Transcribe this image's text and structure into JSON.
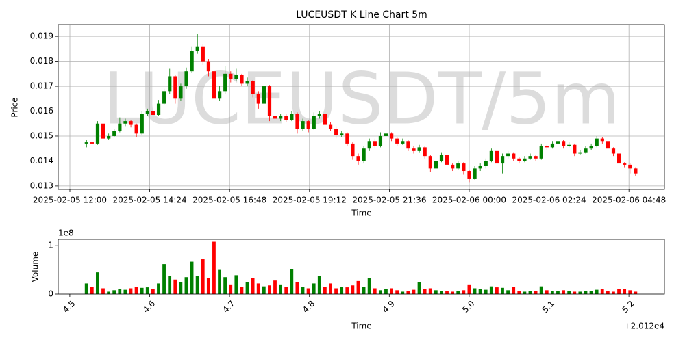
{
  "chart_data": [
    {
      "type": "candlestick",
      "title": "LUCEUSDT K Line Chart 5m",
      "watermark": "LUCEUSDT/5m",
      "xlabel": "Time",
      "ylabel": "Price",
      "grid": true,
      "up_color": "green",
      "down_color": "red",
      "x": [
        "2025-02-05 12:30",
        "2025-02-05 12:40",
        "2025-02-05 12:50",
        "2025-02-05 13:00",
        "2025-02-05 13:10",
        "2025-02-05 13:20",
        "2025-02-05 13:30",
        "2025-02-05 13:40",
        "2025-02-05 13:50",
        "2025-02-05 14:00",
        "2025-02-05 14:10",
        "2025-02-05 14:20",
        "2025-02-05 14:30",
        "2025-02-05 14:40",
        "2025-02-05 14:50",
        "2025-02-05 15:00",
        "2025-02-05 15:10",
        "2025-02-05 15:20",
        "2025-02-05 15:30",
        "2025-02-05 15:40",
        "2025-02-05 15:50",
        "2025-02-05 16:00",
        "2025-02-05 16:10",
        "2025-02-05 16:20",
        "2025-02-05 16:30",
        "2025-02-05 16:40",
        "2025-02-05 16:50",
        "2025-02-05 17:00",
        "2025-02-05 17:10",
        "2025-02-05 17:20",
        "2025-02-05 17:30",
        "2025-02-05 17:40",
        "2025-02-05 17:50",
        "2025-02-05 18:00",
        "2025-02-05 18:10",
        "2025-02-05 18:20",
        "2025-02-05 18:30",
        "2025-02-05 18:40",
        "2025-02-05 18:50",
        "2025-02-05 19:00",
        "2025-02-05 19:10",
        "2025-02-05 19:20",
        "2025-02-05 19:30",
        "2025-02-05 19:40",
        "2025-02-05 19:50",
        "2025-02-05 20:00",
        "2025-02-05 20:10",
        "2025-02-05 20:20",
        "2025-02-05 20:30",
        "2025-02-05 20:40",
        "2025-02-05 20:50",
        "2025-02-05 21:00",
        "2025-02-05 21:10",
        "2025-02-05 21:20",
        "2025-02-05 21:30",
        "2025-02-05 21:40",
        "2025-02-05 21:50",
        "2025-02-05 22:00",
        "2025-02-05 22:10",
        "2025-02-05 22:20",
        "2025-02-05 22:30",
        "2025-02-05 22:40",
        "2025-02-05 22:50",
        "2025-02-05 23:00",
        "2025-02-05 23:10",
        "2025-02-05 23:20",
        "2025-02-05 23:30",
        "2025-02-05 23:40",
        "2025-02-05 23:50",
        "2025-02-06 00:00",
        "2025-02-06 00:10",
        "2025-02-06 00:20",
        "2025-02-06 00:30",
        "2025-02-06 00:40",
        "2025-02-06 00:50",
        "2025-02-06 01:00",
        "2025-02-06 01:10",
        "2025-02-06 01:20",
        "2025-02-06 01:30",
        "2025-02-06 01:40",
        "2025-02-06 01:50",
        "2025-02-06 02:00",
        "2025-02-06 02:10",
        "2025-02-06 02:20",
        "2025-02-06 02:30",
        "2025-02-06 02:40",
        "2025-02-06 02:50",
        "2025-02-06 03:00",
        "2025-02-06 03:10",
        "2025-02-06 03:20",
        "2025-02-06 03:30",
        "2025-02-06 03:40",
        "2025-02-06 03:50",
        "2025-02-06 04:00",
        "2025-02-06 04:10",
        "2025-02-06 04:20",
        "2025-02-06 04:30",
        "2025-02-06 04:40",
        "2025-02-06 04:50",
        "2025-02-06 05:00"
      ],
      "open": [
        0.0147,
        0.01475,
        0.0147,
        0.0155,
        0.0149,
        0.015,
        0.0152,
        0.0155,
        0.0156,
        0.01545,
        0.0151,
        0.0159,
        0.016,
        0.01585,
        0.0163,
        0.0168,
        0.0174,
        0.0165,
        0.017,
        0.0176,
        0.0184,
        0.0186,
        0.018,
        0.0176,
        0.0165,
        0.0168,
        0.0175,
        0.0173,
        0.01745,
        0.0171,
        0.0172,
        0.0167,
        0.0163,
        0.017,
        0.0158,
        0.0157,
        0.0158,
        0.01565,
        0.0159,
        0.0153,
        0.0156,
        0.0153,
        0.0158,
        0.0159,
        0.01545,
        0.0153,
        0.01505,
        0.0151,
        0.0147,
        0.0142,
        0.014,
        0.0145,
        0.0148,
        0.0146,
        0.015,
        0.0151,
        0.0149,
        0.0147,
        0.0148,
        0.0145,
        0.0144,
        0.01455,
        0.0142,
        0.0137,
        0.014,
        0.01425,
        0.01385,
        0.0137,
        0.0139,
        0.0136,
        0.0133,
        0.0137,
        0.0138,
        0.014,
        0.0144,
        0.0139,
        0.0142,
        0.0143,
        0.0141,
        0.014,
        0.0141,
        0.0142,
        0.0141,
        0.0146,
        0.01455,
        0.0147,
        0.0148,
        0.0146,
        0.01465,
        0.0143,
        0.01435,
        0.0145,
        0.0146,
        0.0149,
        0.0148,
        0.0145,
        0.0143,
        0.0139,
        0.01385,
        0.0137
      ],
      "high": [
        0.01485,
        0.0149,
        0.0156,
        0.01555,
        0.0151,
        0.0153,
        0.01575,
        0.0157,
        0.01565,
        0.0155,
        0.016,
        0.0161,
        0.01605,
        0.01645,
        0.0169,
        0.0177,
        0.01745,
        0.0171,
        0.01775,
        0.0186,
        0.0191,
        0.0187,
        0.0181,
        0.0177,
        0.017,
        0.0178,
        0.0176,
        0.0177,
        0.0175,
        0.01735,
        0.01725,
        0.0168,
        0.01715,
        0.01705,
        0.01595,
        0.0159,
        0.0159,
        0.016,
        0.01595,
        0.0157,
        0.01565,
        0.01595,
        0.016,
        0.01595,
        0.01555,
        0.0154,
        0.0152,
        0.01515,
        0.01475,
        0.0143,
        0.0146,
        0.0149,
        0.0149,
        0.01515,
        0.0152,
        0.01515,
        0.01495,
        0.0149,
        0.01485,
        0.0146,
        0.01465,
        0.0146,
        0.01425,
        0.0141,
        0.01435,
        0.0143,
        0.0139,
        0.014,
        0.01395,
        0.01365,
        0.0138,
        0.0139,
        0.0141,
        0.0145,
        0.01445,
        0.0143,
        0.0144,
        0.01435,
        0.01415,
        0.0142,
        0.0143,
        0.01425,
        0.0147,
        0.01465,
        0.0148,
        0.0149,
        0.01485,
        0.01475,
        0.0147,
        0.01445,
        0.0146,
        0.0147,
        0.015,
        0.01495,
        0.01485,
        0.01455,
        0.01435,
        0.01395,
        0.0139,
        0.01375
      ],
      "low": [
        0.01455,
        0.0146,
        0.01465,
        0.0148,
        0.01485,
        0.01495,
        0.01515,
        0.0154,
        0.01535,
        0.01495,
        0.01505,
        0.0158,
        0.01575,
        0.0158,
        0.01625,
        0.0167,
        0.0163,
        0.0164,
        0.0169,
        0.01755,
        0.0183,
        0.01785,
        0.0174,
        0.0162,
        0.0164,
        0.0167,
        0.01715,
        0.0172,
        0.017,
        0.017,
        0.01655,
        0.0161,
        0.01625,
        0.0156,
        0.0156,
        0.0156,
        0.01555,
        0.0156,
        0.0151,
        0.0152,
        0.01515,
        0.01525,
        0.0157,
        0.01535,
        0.0152,
        0.0149,
        0.01495,
        0.0146,
        0.01405,
        0.01385,
        0.0139,
        0.0144,
        0.0145,
        0.01455,
        0.0149,
        0.0148,
        0.0146,
        0.01465,
        0.0144,
        0.0143,
        0.01435,
        0.0141,
        0.01355,
        0.01365,
        0.01395,
        0.01375,
        0.0136,
        0.01365,
        0.01345,
        0.01315,
        0.01325,
        0.0136,
        0.0137,
        0.01395,
        0.0138,
        0.0135,
        0.0141,
        0.014,
        0.0139,
        0.01395,
        0.01405,
        0.014,
        0.01405,
        0.01445,
        0.0145,
        0.01465,
        0.0145,
        0.01455,
        0.0142,
        0.01425,
        0.0143,
        0.01445,
        0.01455,
        0.0147,
        0.0144,
        0.0142,
        0.0138,
        0.01375,
        0.0135,
        0.0134
      ],
      "close": [
        0.01475,
        0.0147,
        0.0155,
        0.0149,
        0.015,
        0.0152,
        0.0155,
        0.0156,
        0.01545,
        0.0151,
        0.0159,
        0.016,
        0.01585,
        0.0163,
        0.0168,
        0.0174,
        0.0165,
        0.017,
        0.0176,
        0.0184,
        0.0186,
        0.018,
        0.0176,
        0.0165,
        0.0168,
        0.0175,
        0.0173,
        0.01745,
        0.0171,
        0.0172,
        0.0167,
        0.0163,
        0.017,
        0.0158,
        0.0157,
        0.0158,
        0.01565,
        0.0159,
        0.0153,
        0.0156,
        0.0153,
        0.0158,
        0.0159,
        0.01545,
        0.0153,
        0.01505,
        0.0151,
        0.0147,
        0.0142,
        0.014,
        0.0145,
        0.0148,
        0.0146,
        0.015,
        0.0151,
        0.0149,
        0.0147,
        0.0148,
        0.0145,
        0.0144,
        0.01455,
        0.0142,
        0.0137,
        0.014,
        0.01425,
        0.01385,
        0.0137,
        0.0139,
        0.0136,
        0.0133,
        0.0137,
        0.0138,
        0.014,
        0.0144,
        0.0139,
        0.0142,
        0.0143,
        0.0141,
        0.014,
        0.0141,
        0.0142,
        0.0141,
        0.0146,
        0.01455,
        0.0147,
        0.0148,
        0.0146,
        0.01465,
        0.0143,
        0.01435,
        0.0145,
        0.0146,
        0.0149,
        0.0148,
        0.0145,
        0.0143,
        0.0139,
        0.01385,
        0.0137,
        0.0135
      ],
      "xlim": [
        "2025-02-05 11:39",
        "2025-02-06 05:52"
      ],
      "xticks": [
        "2025-02-05 12:00",
        "2025-02-05 14:24",
        "2025-02-05 16:48",
        "2025-02-05 19:12",
        "2025-02-05 21:36",
        "2025-02-06 00:00",
        "2025-02-06 02:24",
        "2025-02-06 04:48"
      ],
      "ylim": [
        0.01286,
        0.01947
      ],
      "yticks": [
        0.013,
        0.014,
        0.015,
        0.016,
        0.017,
        0.018,
        0.019
      ]
    },
    {
      "type": "bar",
      "xlabel": "Time",
      "ylabel": "Volume",
      "values": [
        22000000.0,
        15000000.0,
        45000000.0,
        12000000.0,
        5000000.0,
        8000000.0,
        10000000.0,
        9000000.0,
        12000000.0,
        15000000.0,
        13000000.0,
        14000000.0,
        10000000.0,
        22000000.0,
        62000000.0,
        38000000.0,
        30000000.0,
        25000000.0,
        35000000.0,
        67000000.0,
        38000000.0,
        72000000.0,
        33000000.0,
        108000000.0,
        50000000.0,
        35000000.0,
        20000000.0,
        39000000.0,
        15000000.0,
        25000000.0,
        33000000.0,
        22000000.0,
        16000000.0,
        18000000.0,
        28000000.0,
        20000000.0,
        15000000.0,
        51000000.0,
        25000000.0,
        15000000.0,
        12000000.0,
        22000000.0,
        37000000.0,
        15000000.0,
        22000000.0,
        12000000.0,
        15000000.0,
        14000000.0,
        18000000.0,
        27000000.0,
        15000000.0,
        33000000.0,
        12000000.0,
        8000000.0,
        11000000.0,
        12000000.0,
        8000000.0,
        5000000.0,
        6000000.0,
        9000000.0,
        24000000.0,
        10000000.0,
        12000000.0,
        8000000.0,
        6000000.0,
        7000000.0,
        5000000.0,
        6000000.0,
        8000000.0,
        20000000.0,
        12000000.0,
        10000000.0,
        9000000.0,
        16000000.0,
        14000000.0,
        13000000.0,
        8000000.0,
        15000000.0,
        6000000.0,
        5000000.0,
        7000000.0,
        6000000.0,
        16000000.0,
        8000000.0,
        6000000.0,
        6000000.0,
        8000000.0,
        7000000.0,
        5000000.0,
        5000000.0,
        6000000.0,
        6000000.0,
        9000000.0,
        10000000.0,
        6000000.0,
        5000000.0,
        11000000.0,
        10000000.0,
        8000000.0,
        5000000.0
      ],
      "xlim": [
        20124.4855,
        20125.2445
      ],
      "xticks": [
        {
          "value": 20124.5,
          "label": "4.5"
        },
        {
          "value": 20124.6,
          "label": "4.6"
        },
        {
          "value": 20124.7,
          "label": "4.7"
        },
        {
          "value": 20124.8,
          "label": "4.8"
        },
        {
          "value": 20124.9,
          "label": "4.9"
        },
        {
          "value": 20125.0,
          "label": "5.0"
        },
        {
          "value": 20125.1,
          "label": "5.1"
        },
        {
          "value": 20125.2,
          "label": "5.2"
        }
      ],
      "xtick_offset": "+2.012e4",
      "ylim": [
        0,
        113000000.0
      ],
      "yticks": [
        0,
        {
          "value": 100000000,
          "label": "1"
        }
      ],
      "ytick_offset": "1e8"
    }
  ]
}
